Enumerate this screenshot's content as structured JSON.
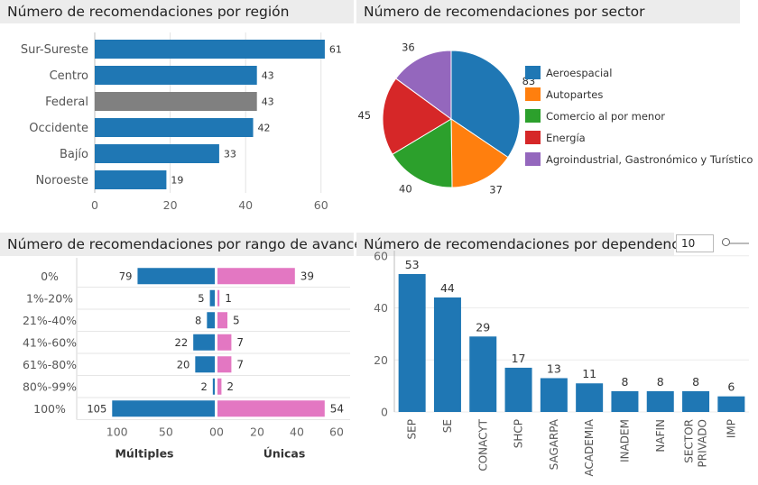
{
  "chart_data": [
    {
      "type": "bar",
      "orientation": "horizontal",
      "title": "Número de recomendaciones por región",
      "categories": [
        "Sur-Sureste",
        "Centro",
        "Federal",
        "Occidente",
        "Bajío",
        "Noroeste"
      ],
      "values": [
        61,
        43,
        43,
        42,
        33,
        19
      ],
      "colors": [
        "#1f77b4",
        "#1f77b4",
        "#808080",
        "#1f77b4",
        "#1f77b4",
        "#1f77b4"
      ],
      "xlim": [
        0,
        67
      ],
      "xticks": [
        0,
        20,
        40,
        60
      ],
      "grid": true
    },
    {
      "type": "pie",
      "title": "Número de recomendaciones por sector",
      "labels": [
        "Aeroespacial",
        "Autopartes",
        "Comercio al por menor",
        "Energía",
        "Agroindustrial, Gastronómico y Turístico"
      ],
      "values": [
        83,
        37,
        40,
        45,
        36
      ],
      "colors": [
        "#1f77b4",
        "#ff7f0e",
        "#2ca02c",
        "#d62728",
        "#9467bd"
      ],
      "legend": "right"
    },
    {
      "type": "bar",
      "orientation": "horizontal",
      "subtype": "butterfly",
      "title": "Número de recomendaciones por rango de avance",
      "categories": [
        "0%",
        "1%-20%",
        "21%-40%",
        "41%-60%",
        "61%-80%",
        "80%-99%",
        "100%"
      ],
      "series": [
        {
          "name": "Múltiples",
          "values": [
            79,
            5,
            8,
            22,
            20,
            2,
            105
          ],
          "color": "#1f77b4"
        },
        {
          "name": "Únicas",
          "values": [
            39,
            1,
            5,
            7,
            7,
            2,
            54
          ],
          "color": "#e377c2"
        }
      ],
      "left_ticks": [
        100,
        50,
        0
      ],
      "right_ticks": [
        0,
        20,
        40,
        60
      ]
    },
    {
      "type": "bar",
      "title": "Número de recomendaciones por dependencia",
      "categories": [
        "SEP",
        "SE",
        "CONACYT",
        "SHCP",
        "SAGARPA",
        "ACADEMIA",
        "INADEM",
        "NAFIN",
        "SECTOR PRIVADO",
        "IMP"
      ],
      "values": [
        53,
        44,
        29,
        17,
        13,
        11,
        8,
        8,
        8,
        6
      ],
      "color": "#1f77b4",
      "ylim": [
        0,
        62
      ],
      "yticks": [
        0,
        20,
        40,
        60
      ],
      "filter_value": "10"
    }
  ]
}
